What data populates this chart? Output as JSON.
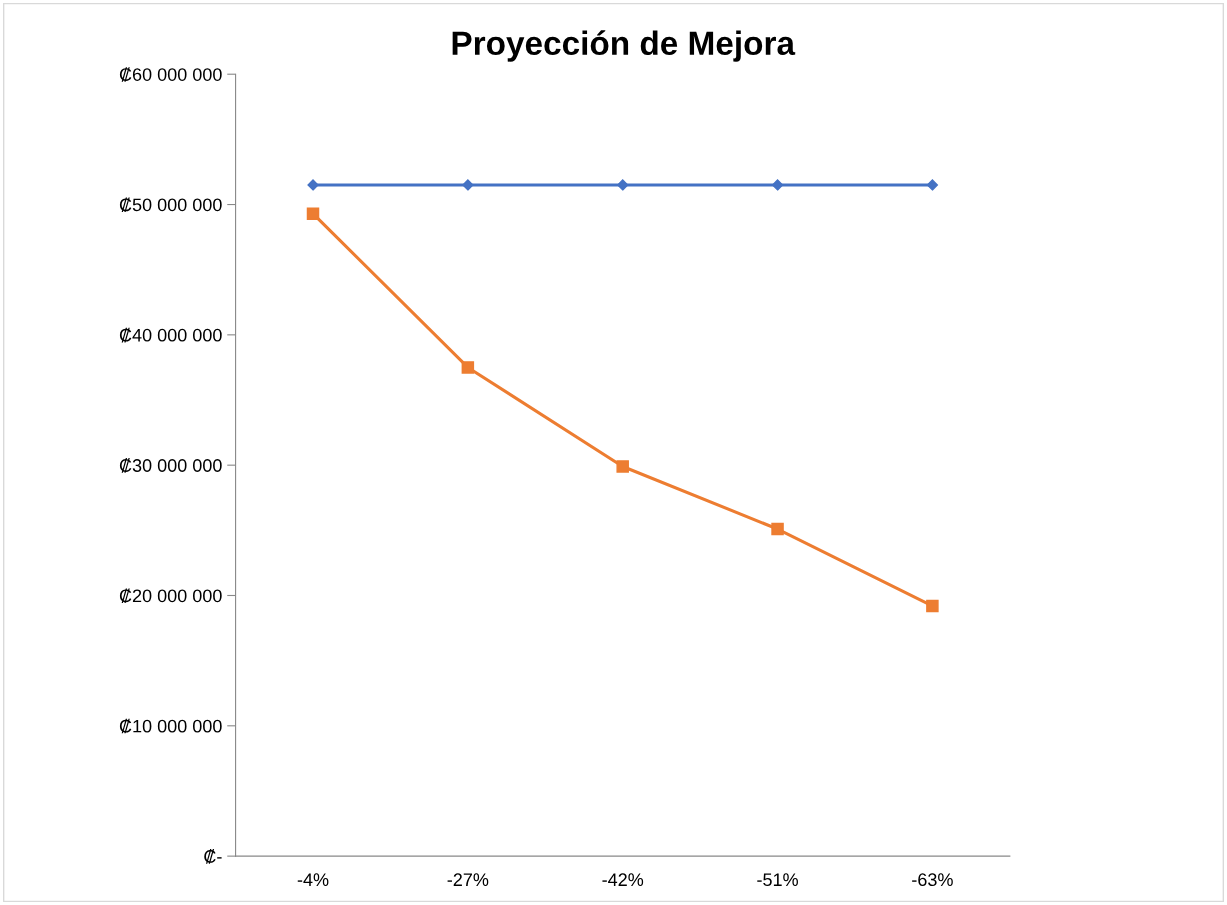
{
  "chart_data": {
    "type": "line",
    "title": "Proyección de Mejora",
    "categories": [
      "-4%",
      "-27%",
      "-42%",
      "-51%",
      "-63%"
    ],
    "series": [
      {
        "color": "#4472c4",
        "marker": "diamond",
        "values": [
          51500000,
          51500000,
          51500000,
          51500000,
          51500000
        ]
      },
      {
        "color": "#ed7d31",
        "marker": "square",
        "values": [
          49300000,
          37500000,
          29900000,
          25100000,
          19200000
        ]
      }
    ],
    "ylim": [
      0,
      60000000
    ],
    "yticks": [
      {
        "value": 0,
        "label": "₡-"
      },
      {
        "value": 10000000,
        "label": "₡10 000 000"
      },
      {
        "value": 20000000,
        "label": "₡20 000 000"
      },
      {
        "value": 30000000,
        "label": "₡30 000 000"
      },
      {
        "value": 40000000,
        "label": "₡40 000 000"
      },
      {
        "value": 50000000,
        "label": "₡50 000 000"
      },
      {
        "value": 60000000,
        "label": "₡60 000 000"
      }
    ],
    "grid": false,
    "legend": false,
    "line_style": "solid"
  }
}
